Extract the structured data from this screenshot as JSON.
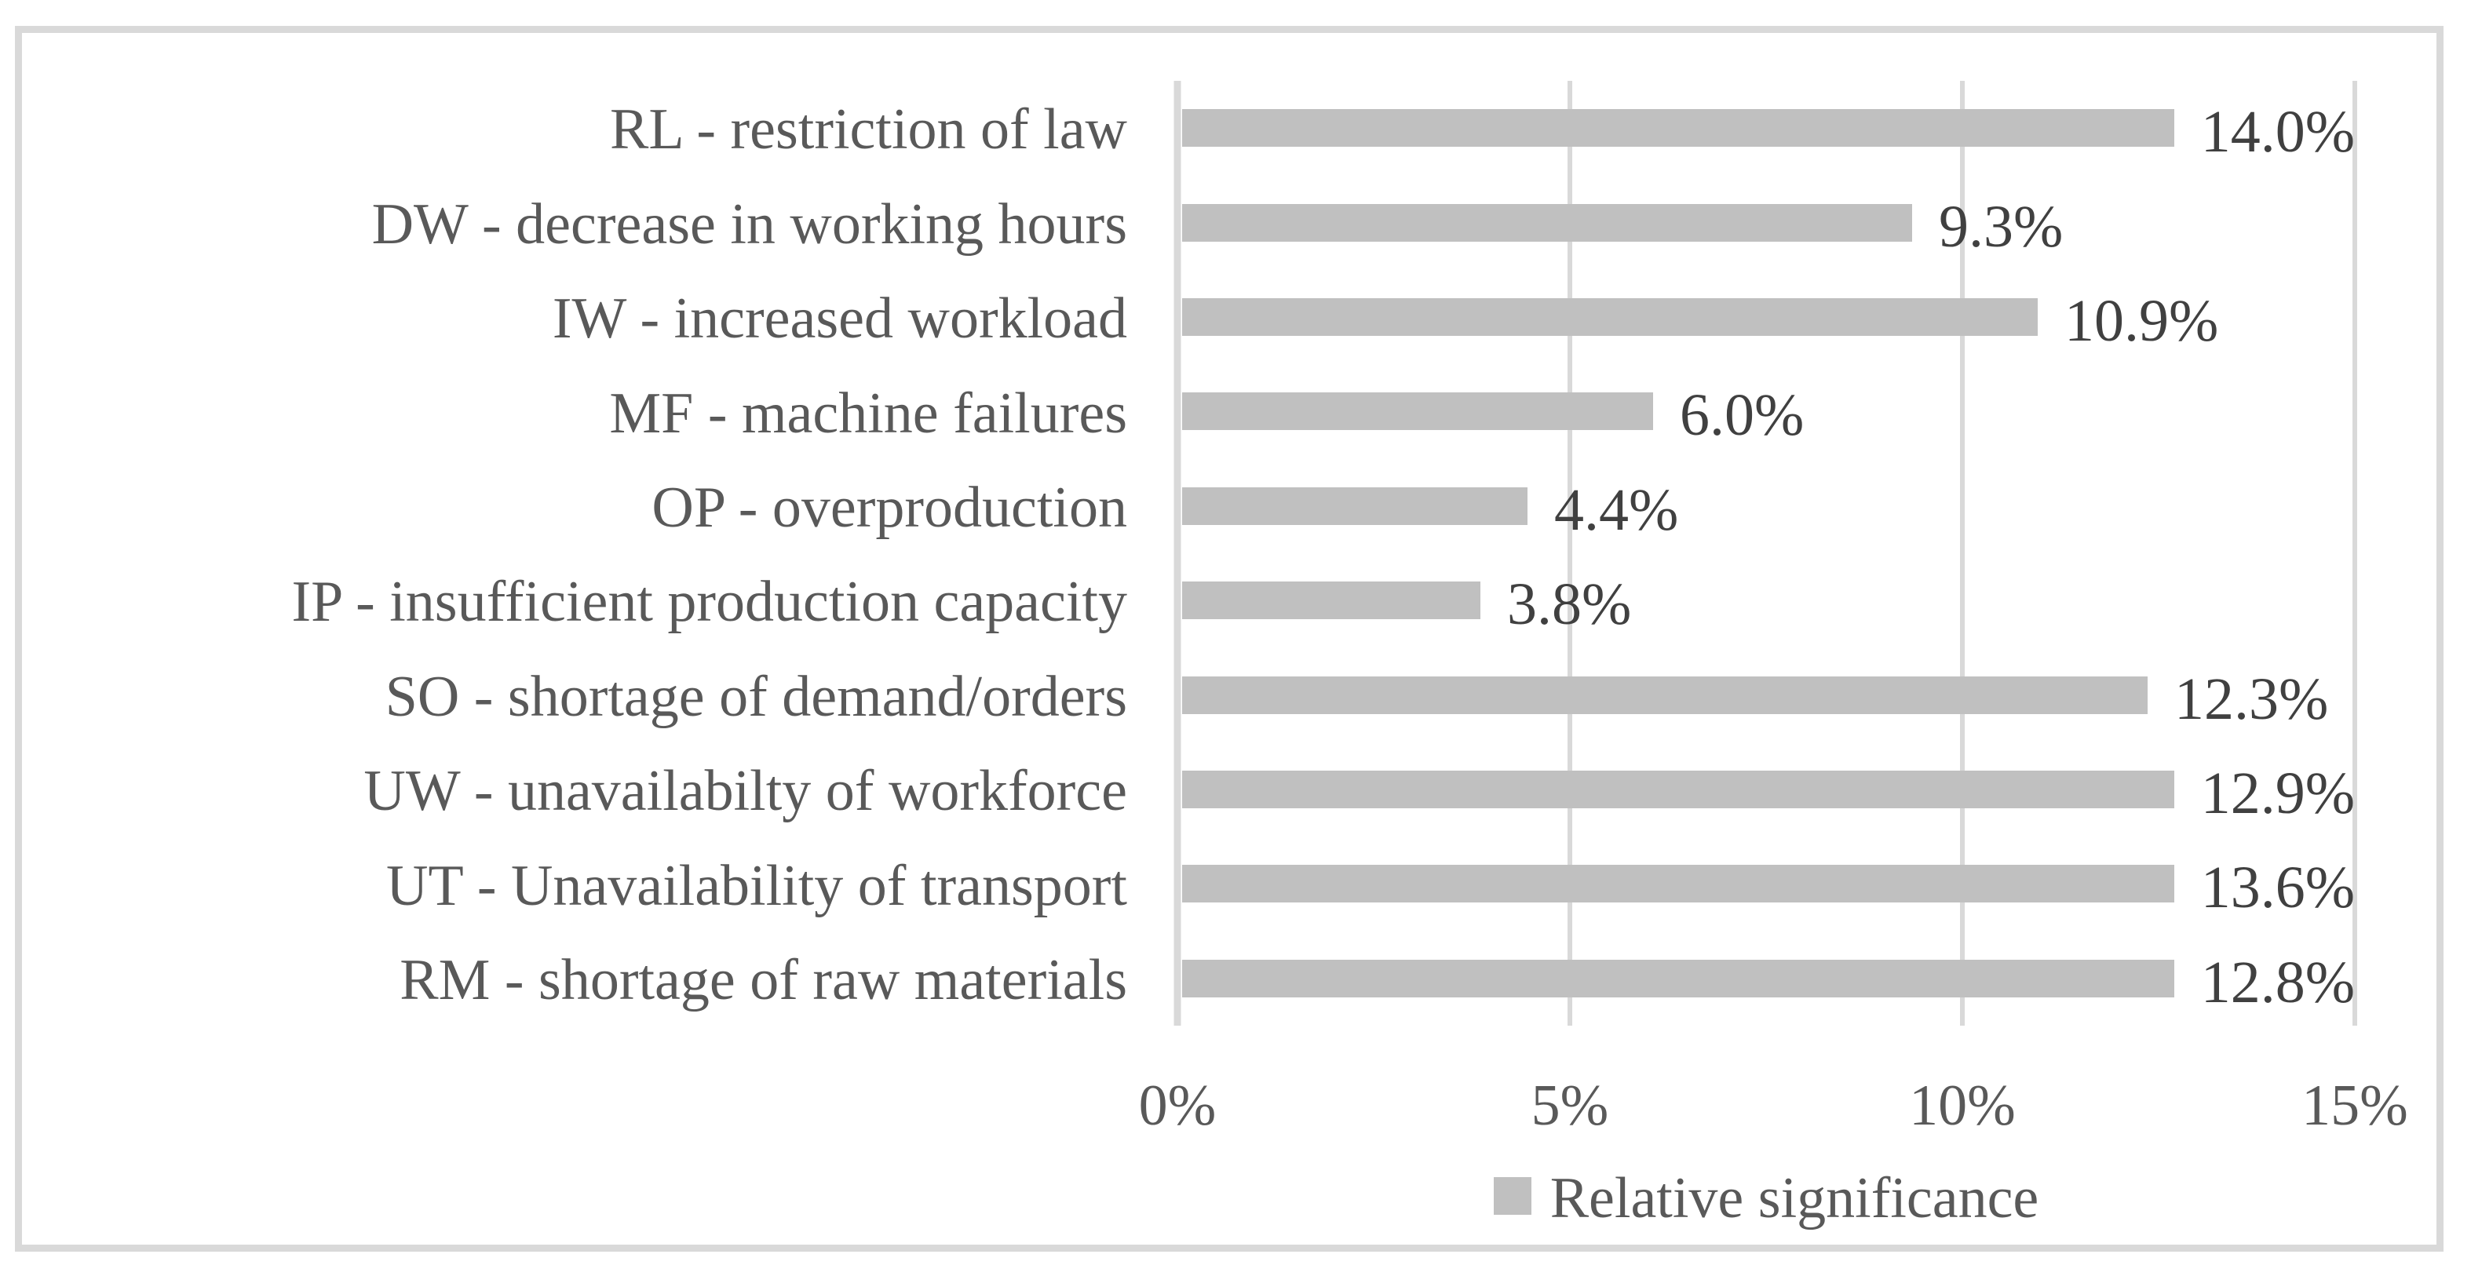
{
  "chart_data": {
    "type": "bar",
    "orientation": "horizontal",
    "title": "",
    "series": [
      {
        "name": "Relative significance",
        "values": [
          14.0,
          9.3,
          10.9,
          6.0,
          4.4,
          3.8,
          12.3,
          12.9,
          13.6,
          12.8
        ]
      }
    ],
    "categories": [
      "RL - restriction of law",
      "DW - decrease in working hours",
      "IW - increased workload",
      "MF - machine failures",
      "OP - overproduction",
      "IP - insufficient production capacity",
      "SO - shortage of demand/orders",
      "UW - unavailabilty of workforce",
      "UT - Unavailability of transport",
      "RM - shortage of raw materials"
    ],
    "value_labels": [
      "14.0%",
      "9.3%",
      "10.9%",
      "6.0%",
      "4.4%",
      "3.8%",
      "12.3%",
      "12.9%",
      "13.6%",
      "12.8%"
    ],
    "x_ticks": [
      {
        "label": "0%",
        "value": 0
      },
      {
        "label": "5%",
        "value": 5
      },
      {
        "label": "10%",
        "value": 10
      },
      {
        "label": "15%",
        "value": 15
      }
    ],
    "xlim": [
      0,
      15
    ],
    "xlabel": "",
    "ylabel": "",
    "grid": "vertical-major",
    "legend_position": "bottom-center",
    "colors": {
      "bar": "#c0c0c0",
      "gridline": "#d9d9d9",
      "frame": "#d9d9d9",
      "label_text": "#595959",
      "value_text": "#404040",
      "background": "#ffffff"
    }
  },
  "legend": {
    "label": "Relative significance"
  }
}
